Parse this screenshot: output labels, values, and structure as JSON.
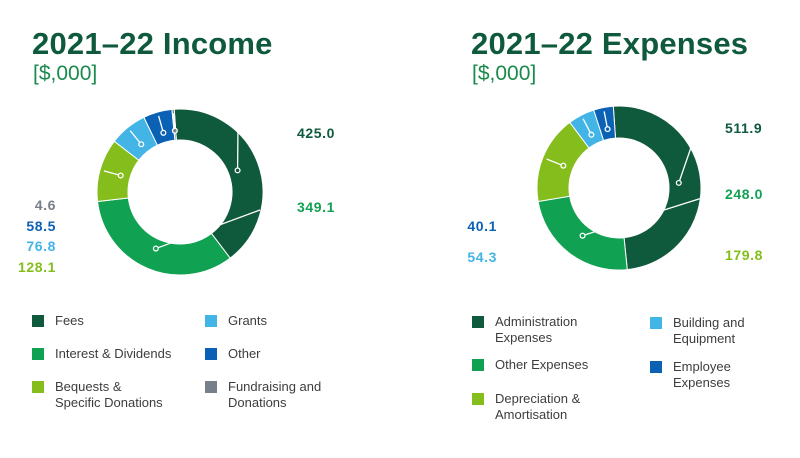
{
  "chart_data": [
    {
      "type": "pie",
      "donut": true,
      "title": "2021–22 Income",
      "subtitle": "[$,000]",
      "categories": [
        "Fees",
        "Interest & Dividends",
        "Bequests &\nSpecific Donations",
        "Grants",
        "Other",
        "Fundraising and\nDonations"
      ],
      "values": [
        425.0,
        349.1,
        128.1,
        76.8,
        58.5,
        4.6
      ],
      "value_labels": [
        "425.0",
        "349.1",
        "128.1",
        "76.8",
        "58.5",
        "4.6"
      ],
      "colors": [
        "#0f5a3d",
        "#11a152",
        "#84bd1c",
        "#42b4e6",
        "#0b62b5",
        "#76808a"
      ],
      "label_colors": [
        "#0f5a3d",
        "#11a152",
        "#84bd1c",
        "#42b4e6",
        "#0b62b5",
        "#76808a"
      ],
      "legend_position": "bottom"
    },
    {
      "type": "pie",
      "donut": true,
      "title": "2021–22 Expenses",
      "subtitle": "[$,000]",
      "categories": [
        "Administration\nExpenses",
        "Other Expenses",
        "Depreciation &\nAmortisation",
        "Building and\nEquipment",
        "Employee\nExpenses"
      ],
      "values": [
        511.9,
        248.0,
        179.8,
        54.3,
        40.1
      ],
      "value_labels": [
        "511.9",
        "248.0",
        "179.8",
        "54.3",
        "40.1"
      ],
      "colors": [
        "#0f5a3d",
        "#11a152",
        "#84bd1c",
        "#42b4e6",
        "#0b62b5"
      ],
      "label_colors": [
        "#0f5a3d",
        "#11a152",
        "#84bd1c",
        "#42b4e6",
        "#0b62b5"
      ],
      "legend_position": "bottom"
    }
  ]
}
